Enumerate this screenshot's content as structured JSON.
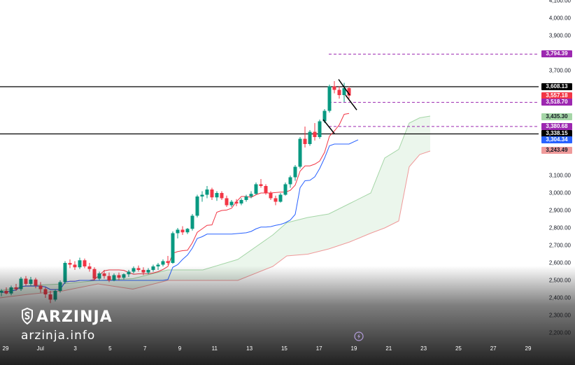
{
  "chart_data": {
    "type": "candlestick",
    "title": "",
    "ylim": [
      2200,
      4100
    ],
    "y_ticks": [
      "4,100.00",
      "4,000.00",
      "3,900.00",
      "3,700.00",
      "3,100.00",
      "3,000.00",
      "2,900.00",
      "2,800.00",
      "2,700.00",
      "2,600.00",
      "2,500.00",
      "2,400.00",
      "2,300.00",
      "2,200.00"
    ],
    "x_ticks": [
      "29",
      "Jul",
      "3",
      "5",
      "7",
      "9",
      "11",
      "13",
      "15",
      "17",
      "19",
      "21",
      "23",
      "25",
      "27",
      "29"
    ],
    "price_labels": [
      {
        "value": "3,794.39",
        "color": "#9c27b0"
      },
      {
        "value": "3,608.13",
        "color": "#000000"
      },
      {
        "value": "3,557.18",
        "color": "#f23645"
      },
      {
        "value": "3,518.70",
        "color": "#9c27b0"
      },
      {
        "value": "3,435.30",
        "color": "#a5d6a7"
      },
      {
        "value": "3,380.68",
        "color": "#9c27b0"
      },
      {
        "value": "3,338.15",
        "color": "#000000"
      },
      {
        "value": "3,304.34",
        "color": "#2962ff"
      },
      {
        "value": "3,243.49",
        "color": "#ef9a9a"
      }
    ],
    "horizontal_levels": [
      {
        "value": 3794.39,
        "style": "dashed",
        "color": "#9c27b0"
      },
      {
        "value": 3608.13,
        "style": "solid",
        "color": "#000000"
      },
      {
        "value": 3518.7,
        "style": "dashed",
        "color": "#9c27b0"
      },
      {
        "value": 3380.68,
        "style": "dashed",
        "color": "#9c27b0"
      },
      {
        "value": 3338.15,
        "style": "solid",
        "color": "#000000"
      }
    ],
    "candles": [
      [
        2430,
        2450,
        2410,
        2440
      ],
      [
        2440,
        2460,
        2420,
        2425
      ],
      [
        2425,
        2470,
        2415,
        2460
      ],
      [
        2460,
        2480,
        2440,
        2450
      ],
      [
        2450,
        2520,
        2440,
        2510
      ],
      [
        2510,
        2525,
        2470,
        2480
      ],
      [
        2480,
        2520,
        2470,
        2505
      ],
      [
        2505,
        2515,
        2455,
        2470
      ],
      [
        2470,
        2490,
        2430,
        2450
      ],
      [
        2450,
        2460,
        2400,
        2420
      ],
      [
        2420,
        2440,
        2370,
        2390
      ],
      [
        2390,
        2450,
        2380,
        2440
      ],
      [
        2440,
        2500,
        2430,
        2490
      ],
      [
        2490,
        2610,
        2480,
        2600
      ],
      [
        2600,
        2620,
        2570,
        2590
      ],
      [
        2590,
        2610,
        2560,
        2575
      ],
      [
        2575,
        2630,
        2565,
        2615
      ],
      [
        2615,
        2625,
        2570,
        2580
      ],
      [
        2580,
        2600,
        2550,
        2565
      ],
      [
        2565,
        2575,
        2500,
        2510
      ],
      [
        2510,
        2550,
        2500,
        2540
      ],
      [
        2540,
        2560,
        2510,
        2525
      ],
      [
        2525,
        2545,
        2490,
        2500
      ],
      [
        2500,
        2540,
        2495,
        2530
      ],
      [
        2530,
        2545,
        2500,
        2515
      ],
      [
        2515,
        2540,
        2505,
        2535
      ],
      [
        2535,
        2560,
        2520,
        2550
      ],
      [
        2550,
        2580,
        2540,
        2570
      ],
      [
        2570,
        2585,
        2550,
        2560
      ],
      [
        2560,
        2575,
        2530,
        2545
      ],
      [
        2545,
        2570,
        2535,
        2560
      ],
      [
        2560,
        2590,
        2550,
        2580
      ],
      [
        2580,
        2600,
        2560,
        2590
      ],
      [
        2590,
        2620,
        2580,
        2610
      ],
      [
        2610,
        2640,
        2590,
        2600
      ],
      [
        2600,
        2780,
        2595,
        2770
      ],
      [
        2770,
        2800,
        2740,
        2790
      ],
      [
        2790,
        2810,
        2760,
        2775
      ],
      [
        2775,
        2800,
        2765,
        2795
      ],
      [
        2795,
        2880,
        2785,
        2870
      ],
      [
        2870,
        2990,
        2860,
        2980
      ],
      [
        2980,
        3010,
        2950,
        2990
      ],
      [
        2990,
        3040,
        2970,
        3020
      ],
      [
        3020,
        3030,
        2960,
        2975
      ],
      [
        2975,
        3010,
        2955,
        3000
      ],
      [
        3000,
        3010,
        2960,
        2970
      ],
      [
        2970,
        2985,
        2920,
        2930
      ],
      [
        2930,
        2960,
        2920,
        2950
      ],
      [
        2950,
        2965,
        2925,
        2940
      ],
      [
        2940,
        2970,
        2930,
        2960
      ],
      [
        2960,
        2990,
        2950,
        2980
      ],
      [
        2980,
        3010,
        2970,
        2995
      ],
      [
        2995,
        3060,
        2990,
        3050
      ],
      [
        3050,
        3080,
        3030,
        3040
      ],
      [
        3040,
        3050,
        2990,
        3000
      ],
      [
        3000,
        3010,
        2960,
        2970
      ],
      [
        2970,
        2985,
        2930,
        2950
      ],
      [
        2950,
        3000,
        2945,
        2990
      ],
      [
        2990,
        3060,
        2985,
        3050
      ],
      [
        3050,
        3100,
        3030,
        3090
      ],
      [
        3090,
        3160,
        3070,
        3150
      ],
      [
        3150,
        3320,
        3140,
        3310
      ],
      [
        3310,
        3380,
        3260,
        3280
      ],
      [
        3280,
        3360,
        3270,
        3350
      ],
      [
        3350,
        3400,
        3300,
        3320
      ],
      [
        3320,
        3420,
        3310,
        3410
      ],
      [
        3410,
        3480,
        3400,
        3470
      ],
      [
        3470,
        3620,
        3460,
        3610
      ],
      [
        3610,
        3640,
        3570,
        3590
      ],
      [
        3590,
        3610,
        3540,
        3560
      ],
      [
        3560,
        3630,
        3520,
        3600
      ],
      [
        3600,
        3610,
        3540,
        3557
      ]
    ]
  }
}
